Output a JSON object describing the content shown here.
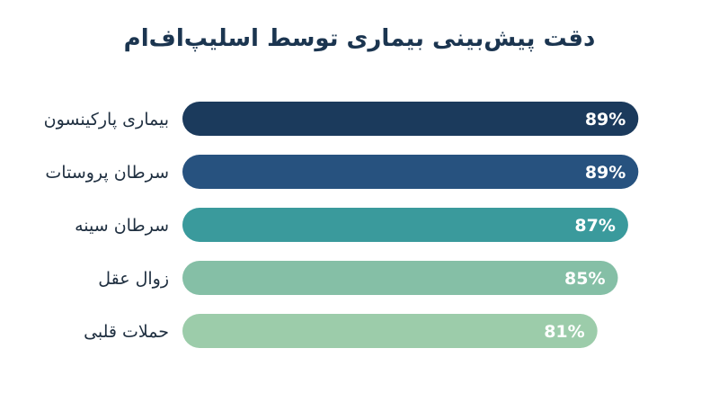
{
  "chart_data": {
    "type": "bar",
    "orientation": "horizontal",
    "title": "دقت پیش‌بینی بیماری توسط اسلیپ‌اف‌ام",
    "categories": [
      "بیماری پارکینسون",
      "سرطان پروستات",
      "سرطان سینه",
      "زوال عقل",
      "حملات قلبی"
    ],
    "values": [
      89,
      89,
      87,
      85,
      81
    ],
    "value_labels": [
      "89%",
      "89%",
      "87%",
      "85%",
      "81%"
    ],
    "unit": "%",
    "colors": [
      "#1b3a5c",
      "#27527f",
      "#3a9a9c",
      "#85bfa6",
      "#9cccaa"
    ],
    "label_color": "#1f2f40",
    "value_label_color": "#ffffff",
    "grid": false,
    "legend": "none"
  }
}
